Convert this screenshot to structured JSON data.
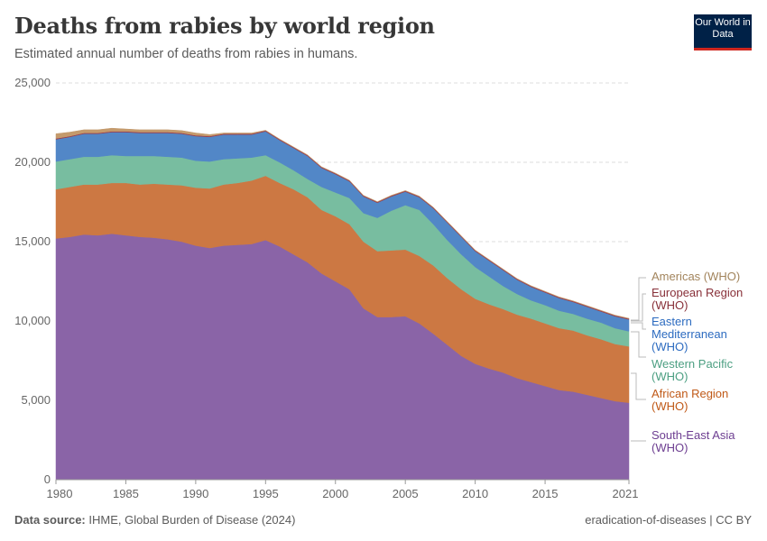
{
  "header": {
    "title": "Deaths from rabies by world region",
    "subtitle": "Estimated annual number of deaths from rabies in humans.",
    "logo": "Our World in Data"
  },
  "footer": {
    "source_label": "Data source:",
    "source": "IHME, Global Burden of Disease (2024)",
    "right": "eradication-of-diseases | CC BY"
  },
  "chart_data": {
    "type": "area",
    "stacked": true,
    "title": "Deaths from rabies by world region",
    "subtitle": "Estimated annual number of deaths from rabies in humans.",
    "ylim": [
      0,
      25000
    ],
    "xlim": [
      1980,
      2021
    ],
    "yticks": [
      "0",
      "5,000",
      "10,000",
      "15,000",
      "20,000",
      "25,000"
    ],
    "xticks": [
      "1980",
      "1985",
      "1990",
      "1995",
      "2000",
      "2005",
      "2010",
      "2015",
      "2021"
    ],
    "grid": "horizontal dashed",
    "legend": "right, inline labels",
    "x": [
      1980,
      1981,
      1982,
      1983,
      1984,
      1985,
      1986,
      1987,
      1988,
      1989,
      1990,
      1991,
      1992,
      1993,
      1994,
      1995,
      1996,
      1997,
      1998,
      1999,
      2000,
      2001,
      2002,
      2003,
      2004,
      2005,
      2006,
      2007,
      2008,
      2009,
      2010,
      2011,
      2012,
      2013,
      2014,
      2015,
      2016,
      2017,
      2018,
      2019,
      2020,
      2021
    ],
    "series": [
      {
        "name": "South-East Asia (WHO)",
        "color": "#8a64a7",
        "label_color": "#6d3e91",
        "values": [
          15200,
          15300,
          15450,
          15400,
          15500,
          15400,
          15300,
          15250,
          15150,
          15000,
          14750,
          14600,
          14750,
          14800,
          14850,
          15100,
          14700,
          14200,
          13700,
          13000,
          12500,
          12000,
          10800,
          10250,
          10250,
          10300,
          9850,
          9200,
          8500,
          7800,
          7300,
          7000,
          6750,
          6400,
          6150,
          5900,
          5650,
          5550,
          5350,
          5150,
          4950,
          4850
        ]
      },
      {
        "name": "African Region (WHO)",
        "color": "#cc7843",
        "label_color": "#c05917",
        "values": [
          3100,
          3150,
          3150,
          3200,
          3200,
          3300,
          3300,
          3400,
          3450,
          3550,
          3650,
          3750,
          3850,
          3900,
          4000,
          4050,
          4000,
          4100,
          4100,
          4000,
          4100,
          4100,
          4200,
          4150,
          4200,
          4200,
          4250,
          4300,
          4200,
          4200,
          4100,
          4050,
          4000,
          4000,
          4000,
          3950,
          3900,
          3850,
          3750,
          3700,
          3600,
          3550
        ]
      },
      {
        "name": "Western Pacific (WHO)",
        "color": "#78bda0",
        "label_color": "#4c9f82",
        "values": [
          1750,
          1750,
          1750,
          1750,
          1750,
          1700,
          1800,
          1750,
          1750,
          1750,
          1700,
          1700,
          1600,
          1550,
          1450,
          1300,
          1300,
          1200,
          1150,
          1450,
          1500,
          1650,
          1800,
          2100,
          2500,
          2800,
          2900,
          2600,
          2400,
          2200,
          2000,
          1750,
          1450,
          1300,
          1150,
          1150,
          1100,
          1050,
          1050,
          1050,
          1000,
          950
        ]
      },
      {
        "name": "Eastern Mediterranean (WHO)",
        "color": "#5287c7",
        "label_color": "#2c6bc0",
        "values": [
          1400,
          1400,
          1450,
          1450,
          1450,
          1500,
          1450,
          1450,
          1500,
          1500,
          1550,
          1550,
          1550,
          1500,
          1450,
          1500,
          1400,
          1400,
          1450,
          1200,
          1150,
          1050,
          1050,
          950,
          900,
          850,
          800,
          1000,
          1100,
          1100,
          1000,
          1000,
          1000,
          900,
          850,
          800,
          800,
          750,
          750,
          700,
          750,
          750
        ]
      },
      {
        "name": "European Region (WHO)",
        "color": "#9a3b4a",
        "label_color": "#883039",
        "values": [
          50,
          50,
          50,
          50,
          50,
          50,
          50,
          50,
          50,
          50,
          50,
          50,
          50,
          50,
          50,
          50,
          50,
          50,
          50,
          50,
          50,
          50,
          50,
          50,
          50,
          50,
          50,
          50,
          50,
          50,
          50,
          50,
          50,
          50,
          50,
          50,
          50,
          50,
          50,
          50,
          50,
          50
        ]
      },
      {
        "name": "Americas (WHO)",
        "color": "#c49a6c",
        "label_color": "#a2845c",
        "values": [
          300,
          250,
          200,
          200,
          200,
          150,
          150,
          150,
          150,
          150,
          150,
          100,
          50,
          50,
          50,
          20,
          20,
          20,
          20,
          20,
          20,
          20,
          20,
          20,
          20,
          20,
          20,
          20,
          20,
          20,
          20,
          20,
          20,
          20,
          20,
          20,
          20,
          20,
          20,
          20,
          20,
          20
        ]
      }
    ]
  }
}
